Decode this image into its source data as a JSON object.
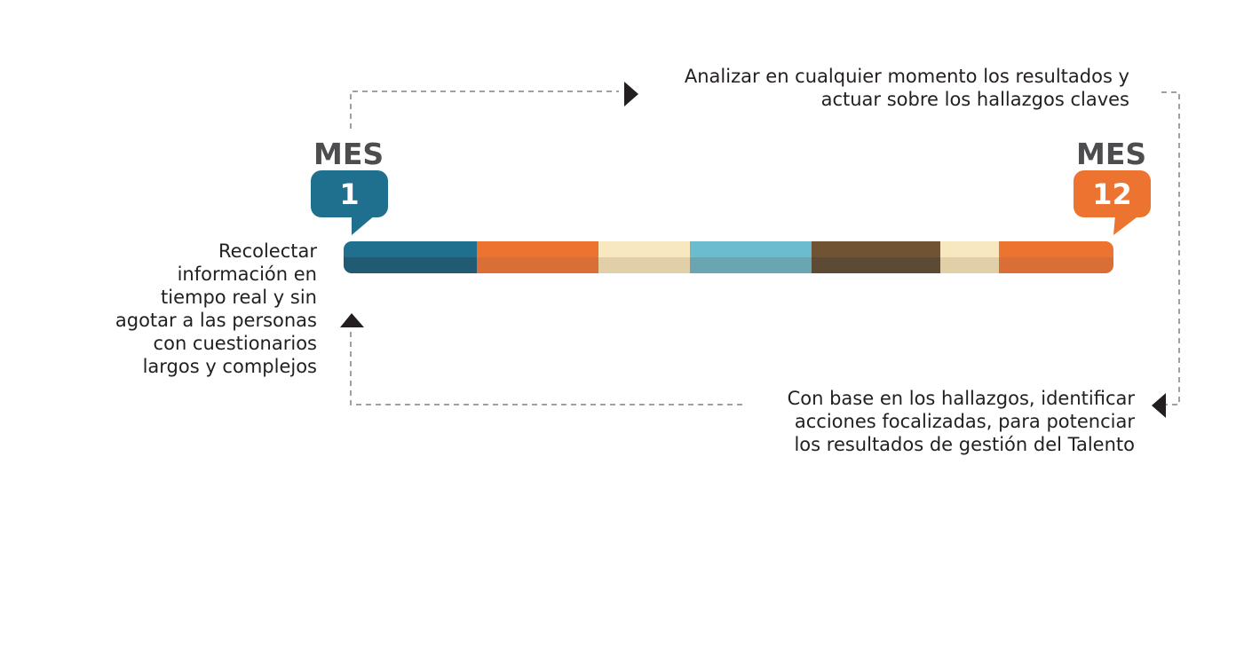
{
  "top_text": [
    "Analizar en cualquier momento los resultados y",
    "actuar sobre los hallazgos claves"
  ],
  "left_text": [
    "Recolectar",
    "información en",
    "tiempo real y sin",
    "agotar a las personas",
    "con cuestionarios",
    "largos y complejos"
  ],
  "bottom_text": [
    "Con base en los hallazgos, identificar",
    "acciones focalizadas, para potenciar",
    "los resultados de gestión del Talento"
  ],
  "start": {
    "label": "MES",
    "number": "1",
    "color": "#1f6f8f"
  },
  "end": {
    "label": "MES",
    "number": "12",
    "color": "#ec7430"
  },
  "timeline_segments": [
    {
      "top": "#1f6f8f",
      "bottom": "#215a73"
    },
    {
      "top": "#ec7430",
      "bottom": "#d96f36"
    },
    {
      "top": "#f8e8c0",
      "bottom": "#e1cfa8"
    },
    {
      "top": "#6bbccc",
      "bottom": "#6aa6b2"
    },
    {
      "top": "#6f5332",
      "bottom": "#5d4a34"
    },
    {
      "top": "#f8e8c0",
      "bottom": "#e1cfa8"
    },
    {
      "top": "#ec7430",
      "bottom": "#d96f36"
    }
  ],
  "colors": {
    "text": "#231f20",
    "dash": "#808080",
    "arrow": "#231f20"
  }
}
